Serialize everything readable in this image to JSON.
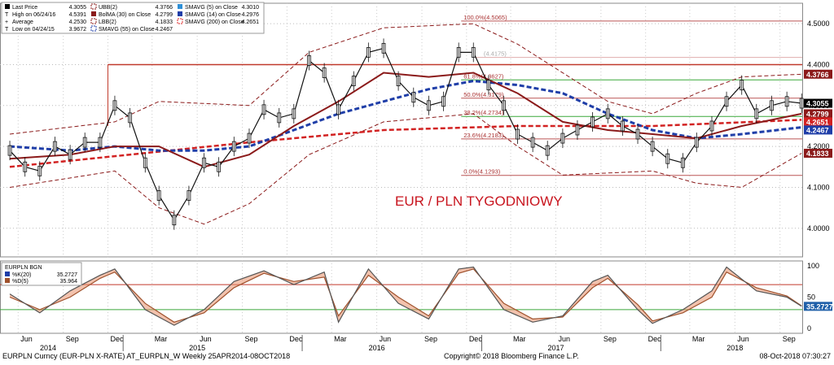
{
  "legend_main": {
    "items": [
      {
        "label": "Last Price",
        "value": "4.3055",
        "color": "#000000",
        "icon": "square-black"
      },
      {
        "label": "High on 06/24/16",
        "value": "4.5391",
        "color": "#000000",
        "icon": "tick"
      },
      {
        "label": "Average",
        "value": "4.2530",
        "color": "#000000",
        "icon": "plus"
      },
      {
        "label": "Low on 04/24/15",
        "value": "3.9672",
        "color": "#000000",
        "icon": "tick"
      },
      {
        "label": "UBB(2)",
        "value": "4.3766",
        "color": "#8b1a1a",
        "icon": "dashed-box"
      },
      {
        "label": "BolMA (30)  on Close",
        "value": "4.2799",
        "color": "#8b1a1a",
        "icon": "square-red"
      },
      {
        "label": "LBB(2)",
        "value": "4.1833",
        "color": "#8b1a1a",
        "icon": "dashed-box"
      },
      {
        "label": "SMAVG (55)  on Close",
        "value": "4.2467",
        "color": "#1f3ea8",
        "icon": "dashed-blue"
      },
      {
        "label": "SMAVG (5)  on Close",
        "value": "4.3010",
        "color": "#2e8fd6",
        "icon": "square-lightblue"
      },
      {
        "label": "SMAVG (14)  on Close",
        "value": "4.2976",
        "color": "#1f3ea8",
        "icon": "square-blue"
      },
      {
        "label": "SMAVG (200)  on Close",
        "value": "4.2651",
        "color": "#d22",
        "icon": "dashed-red"
      }
    ]
  },
  "legend_osc": {
    "title": "EURPLN BGN",
    "items": [
      {
        "label": "%K(20)",
        "value": "35.2727",
        "color": "#1f3ea8"
      },
      {
        "label": "%D(5)",
        "value": "35.964",
        "color": "#a0522d"
      }
    ]
  },
  "price_axis": {
    "ticks": [
      "4.5000",
      "4.4000",
      "4.3000",
      "4.2000",
      "4.1000",
      "4.0000"
    ]
  },
  "osc_axis": {
    "ticks": [
      "100",
      "50",
      "0"
    ]
  },
  "right_badges": [
    {
      "value": "4.3766",
      "bg": "#8b1a1a",
      "fg": "#ffffff"
    },
    {
      "value": "4.3055",
      "bg": "#000000",
      "fg": "#ffffff"
    },
    {
      "value": "4.2799",
      "bg": "#8b1a1a",
      "fg": "#ffffff"
    },
    {
      "value": "4.2651",
      "bg": "#d22222",
      "fg": "#ffffff"
    },
    {
      "value": "4.2467",
      "bg": "#1f3ea8",
      "fg": "#ffffff"
    },
    {
      "value": "4.1833",
      "bg": "#8b1a1a",
      "fg": "#ffffff"
    },
    {
      "value": "35.2727",
      "bg": "#1f5fa8",
      "fg": "#ffffff"
    }
  ],
  "annotation": "EUR / PLN TYGODNIOWY",
  "fib_levels": [
    {
      "label": "100.0%(4.5065)",
      "value": 4.5065
    },
    {
      "label": "61.8%(4.3627)",
      "value": 4.3627
    },
    {
      "label": "50.0%(4.3179)",
      "value": 4.3179
    },
    {
      "label": "38.2%(4.2734)",
      "value": 4.2734
    },
    {
      "label": "23.6%(4.2183)",
      "value": 4.2183
    },
    {
      "label": "0.0%(4.1293)",
      "value": 4.1293
    }
  ],
  "fib_extra": {
    "label": "(4.4175)",
    "value": 4.4175
  },
  "x_axis": {
    "months": [
      "Jun",
      "Sep",
      "Dec",
      "Mar",
      "Jun",
      "Sep",
      "Dec",
      "Mar",
      "Jun",
      "Sep",
      "Dec",
      "Mar",
      "Jun",
      "Sep",
      "Dec",
      "Mar",
      "Jun",
      "Sep"
    ],
    "years": [
      "2014",
      "2015",
      "2016",
      "2017",
      "2018"
    ]
  },
  "footer": {
    "left": "EURPLN Curncy (EUR-PLN X-RATE) AT_EURPLN_W  Weekly 25APR2014-08OCT2018",
    "center": "Copyright© 2018 Bloomberg Finance L.P.",
    "right": "08-Oct-2018 07:30:27"
  },
  "chart_data": [
    {
      "type": "line",
      "title": "EUR / PLN TYGODNIOWY",
      "x_range": [
        "2014-04-25",
        "2018-10-08"
      ],
      "ylim": [
        3.93,
        4.55
      ],
      "grid": true,
      "series": [
        {
          "name": "Last Price",
          "values": [
            [
              "2014-05",
              4.19
            ],
            [
              "2014-06",
              4.15
            ],
            [
              "2014-07",
              4.14
            ],
            [
              "2014-08",
              4.2
            ],
            [
              "2014-09",
              4.18
            ],
            [
              "2014-10",
              4.21
            ],
            [
              "2014-11",
              4.21
            ],
            [
              "2014-12",
              4.3
            ],
            [
              "2015-01",
              4.27
            ],
            [
              "2015-02",
              4.16
            ],
            [
              "2015-03",
              4.08
            ],
            [
              "2015-04",
              4.02
            ],
            [
              "2015-05",
              4.08
            ],
            [
              "2015-06",
              4.16
            ],
            [
              "2015-07",
              4.15
            ],
            [
              "2015-08",
              4.2
            ],
            [
              "2015-09",
              4.22
            ],
            [
              "2015-10",
              4.29
            ],
            [
              "2015-11",
              4.27
            ],
            [
              "2015-12",
              4.28
            ],
            [
              "2016-01",
              4.41
            ],
            [
              "2016-02",
              4.38
            ],
            [
              "2016-03",
              4.29
            ],
            [
              "2016-04",
              4.36
            ],
            [
              "2016-05",
              4.43
            ],
            [
              "2016-06",
              4.44
            ],
            [
              "2016-07",
              4.36
            ],
            [
              "2016-08",
              4.32
            ],
            [
              "2016-09",
              4.3
            ],
            [
              "2016-10",
              4.31
            ],
            [
              "2016-11",
              4.43
            ],
            [
              "2016-12",
              4.43
            ],
            [
              "2017-01",
              4.35
            ],
            [
              "2017-02",
              4.3
            ],
            [
              "2017-03",
              4.23
            ],
            [
              "2017-04",
              4.21
            ],
            [
              "2017-05",
              4.19
            ],
            [
              "2017-06",
              4.22
            ],
            [
              "2017-07",
              4.24
            ],
            [
              "2017-08",
              4.26
            ],
            [
              "2017-09",
              4.28
            ],
            [
              "2017-10",
              4.25
            ],
            [
              "2017-11",
              4.23
            ],
            [
              "2017-12",
              4.2
            ],
            [
              "2018-01",
              4.17
            ],
            [
              "2018-02",
              4.16
            ],
            [
              "2018-03",
              4.21
            ],
            [
              "2018-04",
              4.25
            ],
            [
              "2018-05",
              4.31
            ],
            [
              "2018-06",
              4.35
            ],
            [
              "2018-07",
              4.28
            ],
            [
              "2018-08",
              4.3
            ],
            [
              "2018-09",
              4.31
            ],
            [
              "2018-10",
              4.3055
            ]
          ]
        },
        {
          "name": "BolMA (30)  on Close",
          "values": [
            [
              "2014-05",
              4.17
            ],
            [
              "2014-09",
              4.18
            ],
            [
              "2014-12",
              4.2
            ],
            [
              "2015-03",
              4.2
            ],
            [
              "2015-06",
              4.15
            ],
            [
              "2015-09",
              4.18
            ],
            [
              "2015-12",
              4.25
            ],
            [
              "2016-03",
              4.31
            ],
            [
              "2016-06",
              4.38
            ],
            [
              "2016-09",
              4.37
            ],
            [
              "2016-12",
              4.38
            ],
            [
              "2017-03",
              4.33
            ],
            [
              "2017-06",
              4.26
            ],
            [
              "2017-09",
              4.24
            ],
            [
              "2017-12",
              4.23
            ],
            [
              "2018-03",
              4.22
            ],
            [
              "2018-06",
              4.25
            ],
            [
              "2018-10",
              4.2799
            ]
          ]
        },
        {
          "name": "SMAVG (55)  on Close",
          "values": [
            [
              "2014-05",
              4.2
            ],
            [
              "2014-09",
              4.19
            ],
            [
              "2014-12",
              4.2
            ],
            [
              "2015-03",
              4.19
            ],
            [
              "2015-06",
              4.19
            ],
            [
              "2015-09",
              4.2
            ],
            [
              "2015-12",
              4.24
            ],
            [
              "2016-03",
              4.28
            ],
            [
              "2016-06",
              4.31
            ],
            [
              "2016-09",
              4.34
            ],
            [
              "2016-12",
              4.36
            ],
            [
              "2017-03",
              4.35
            ],
            [
              "2017-06",
              4.33
            ],
            [
              "2017-09",
              4.28
            ],
            [
              "2017-12",
              4.24
            ],
            [
              "2018-03",
              4.22
            ],
            [
              "2018-06",
              4.23
            ],
            [
              "2018-10",
              4.2467
            ]
          ]
        },
        {
          "name": "SMAVG (200)  on Close",
          "values": [
            [
              "2014-05",
              4.15
            ],
            [
              "2015-01",
              4.18
            ],
            [
              "2015-09",
              4.21
            ],
            [
              "2016-06",
              4.24
            ],
            [
              "2017-03",
              4.25
            ],
            [
              "2017-12",
              4.25
            ],
            [
              "2018-10",
              4.2651
            ]
          ]
        },
        {
          "name": "UBB(2)",
          "values": [
            [
              "2014-05",
              4.23
            ],
            [
              "2014-12",
              4.26
            ],
            [
              "2015-03",
              4.31
            ],
            [
              "2015-09",
              4.3
            ],
            [
              "2016-01",
              4.43
            ],
            [
              "2016-06",
              4.49
            ],
            [
              "2016-12",
              4.5
            ],
            [
              "2017-03",
              4.45
            ],
            [
              "2017-09",
              4.31
            ],
            [
              "2017-12",
              4.28
            ],
            [
              "2018-03",
              4.33
            ],
            [
              "2018-06",
              4.37
            ],
            [
              "2018-10",
              4.3766
            ]
          ]
        },
        {
          "name": "LBB(2)",
          "values": [
            [
              "2014-05",
              4.1
            ],
            [
              "2014-12",
              4.14
            ],
            [
              "2015-03",
              4.05
            ],
            [
              "2015-06",
              4.01
            ],
            [
              "2015-09",
              4.06
            ],
            [
              "2016-01",
              4.18
            ],
            [
              "2016-06",
              4.26
            ],
            [
              "2016-12",
              4.28
            ],
            [
              "2017-03",
              4.2
            ],
            [
              "2017-06",
              4.13
            ],
            [
              "2017-12",
              4.14
            ],
            [
              "2018-03",
              4.11
            ],
            [
              "2018-06",
              4.1
            ],
            [
              "2018-10",
              4.1833
            ]
          ]
        }
      ],
      "horizontal_lines": [
        4.4,
        4.5065,
        4.4175,
        4.3627,
        4.3179,
        4.2734,
        4.2183,
        4.1293
      ]
    },
    {
      "type": "area",
      "title": "EURPLN BGN",
      "ylim": [
        0,
        100
      ],
      "reference_lines": [
        70,
        30
      ],
      "series": [
        {
          "name": "%K(20)",
          "values": [
            [
              "2014-05",
              55
            ],
            [
              "2014-07",
              25
            ],
            [
              "2014-09",
              60
            ],
            [
              "2014-11",
              85
            ],
            [
              "2014-12",
              95
            ],
            [
              "2015-02",
              30
            ],
            [
              "2015-04",
              5
            ],
            [
              "2015-06",
              30
            ],
            [
              "2015-08",
              75
            ],
            [
              "2015-10",
              92
            ],
            [
              "2015-12",
              70
            ],
            [
              "2016-02",
              90
            ],
            [
              "2016-03",
              10
            ],
            [
              "2016-05",
              95
            ],
            [
              "2016-07",
              40
            ],
            [
              "2016-09",
              15
            ],
            [
              "2016-11",
              95
            ],
            [
              "2016-12",
              98
            ],
            [
              "2017-02",
              30
            ],
            [
              "2017-04",
              10
            ],
            [
              "2017-06",
              20
            ],
            [
              "2017-08",
              75
            ],
            [
              "2017-09",
              85
            ],
            [
              "2017-11",
              30
            ],
            [
              "2017-12",
              8
            ],
            [
              "2018-02",
              30
            ],
            [
              "2018-04",
              60
            ],
            [
              "2018-05",
              98
            ],
            [
              "2018-07",
              60
            ],
            [
              "2018-09",
              50
            ],
            [
              "2018-10",
              35.2727
            ]
          ]
        },
        {
          "name": "%D(5)",
          "values": [
            [
              "2014-05",
              50
            ],
            [
              "2014-07",
              30
            ],
            [
              "2014-09",
              50
            ],
            [
              "2014-11",
              80
            ],
            [
              "2014-12",
              90
            ],
            [
              "2015-02",
              40
            ],
            [
              "2015-04",
              10
            ],
            [
              "2015-06",
              25
            ],
            [
              "2015-08",
              65
            ],
            [
              "2015-10",
              88
            ],
            [
              "2015-12",
              75
            ],
            [
              "2016-02",
              82
            ],
            [
              "2016-03",
              20
            ],
            [
              "2016-05",
              85
            ],
            [
              "2016-07",
              50
            ],
            [
              "2016-09",
              20
            ],
            [
              "2016-11",
              88
            ],
            [
              "2016-12",
              95
            ],
            [
              "2017-02",
              40
            ],
            [
              "2017-04",
              15
            ],
            [
              "2017-06",
              18
            ],
            [
              "2017-08",
              65
            ],
            [
              "2017-09",
              80
            ],
            [
              "2017-11",
              38
            ],
            [
              "2017-12",
              12
            ],
            [
              "2018-02",
              25
            ],
            [
              "2018-04",
              50
            ],
            [
              "2018-05",
              90
            ],
            [
              "2018-07",
              65
            ],
            [
              "2018-09",
              52
            ],
            [
              "2018-10",
              35.964
            ]
          ]
        }
      ]
    }
  ]
}
